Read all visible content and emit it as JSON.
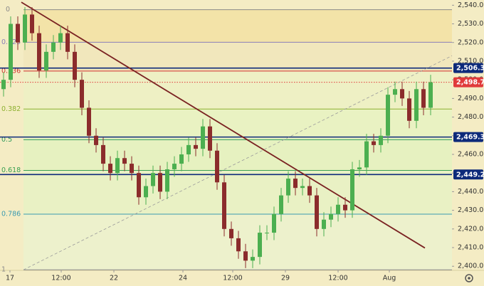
{
  "chart_data": {
    "type": "candlestick",
    "open": [
      2495,
      2500,
      2530,
      2520,
      2535,
      2525,
      2505,
      2515,
      2520,
      2525,
      2515,
      2500,
      2485,
      2470,
      2465,
      2455,
      2450,
      2458,
      2455,
      2450,
      2437,
      2443,
      2450,
      2440,
      2452,
      2455,
      2460,
      2465,
      2463,
      2475,
      2462,
      2445,
      2420,
      2415,
      2408,
      2403,
      2405,
      2418,
      2418,
      2428,
      2438,
      2447,
      2442,
      2443,
      2438,
      2420,
      2425,
      2428,
      2433,
      2430,
      2452,
      2453,
      2467,
      2465,
      2470,
      2492,
      2495,
      2490,
      2478,
      2495,
      2485
    ],
    "high": [
      2504,
      2534,
      2534,
      2539,
      2539,
      2529,
      2519,
      2524,
      2529,
      2529,
      2519,
      2504,
      2489,
      2474,
      2469,
      2459,
      2462,
      2462,
      2459,
      2454,
      2447,
      2454,
      2454,
      2456,
      2459,
      2464,
      2469,
      2469,
      2479,
      2479,
      2466,
      2449,
      2424,
      2419,
      2412,
      2409,
      2422,
      2422,
      2432,
      2442,
      2451,
      2451,
      2447,
      2447,
      2442,
      2429,
      2432,
      2437,
      2437,
      2456,
      2457,
      2471,
      2471,
      2474,
      2496,
      2499,
      2499,
      2494,
      2499,
      2499,
      2502.7
    ],
    "low": [
      2491,
      2496,
      2516,
      2516,
      2521,
      2501,
      2501,
      2511,
      2516,
      2511,
      2496,
      2481,
      2466,
      2461,
      2451,
      2446,
      2446,
      2451,
      2446,
      2433,
      2433,
      2439,
      2436,
      2436,
      2448,
      2451,
      2456,
      2459,
      2459,
      2458,
      2441,
      2416,
      2411,
      2404,
      2399,
      2399,
      2401,
      2414,
      2414,
      2424,
      2434,
      2438,
      2438,
      2434,
      2416,
      2416,
      2421,
      2424,
      2426,
      2426,
      2448,
      2449,
      2461,
      2461,
      2466,
      2488,
      2486,
      2474,
      2474,
      2481,
      2481
    ],
    "close": [
      2500,
      2530,
      2520,
      2535,
      2525,
      2505,
      2515,
      2520,
      2525,
      2515,
      2500,
      2485,
      2470,
      2465,
      2455,
      2450,
      2458,
      2455,
      2450,
      2437,
      2443,
      2450,
      2440,
      2452,
      2455,
      2460,
      2465,
      2463,
      2475,
      2462,
      2445,
      2420,
      2415,
      2408,
      2403,
      2405,
      2418,
      2418,
      2428,
      2438,
      2447,
      2442,
      2443,
      2438,
      2420,
      2425,
      2428,
      2433,
      2430,
      2452,
      2453,
      2467,
      2465,
      2470,
      2492,
      2495,
      2490,
      2478,
      2495,
      2485,
      2498.7
    ],
    "up_color": "#4caf50",
    "down_color": "#8b2c2c",
    "xlim": [
      -0.5,
      63
    ],
    "xticks": [
      {
        "value": 0.9,
        "label": "17"
      },
      {
        "value": 8.1,
        "label": "12:00"
      },
      {
        "value": 15.5,
        "label": "22"
      },
      {
        "value": 25.2,
        "label": "24"
      },
      {
        "value": 32.2,
        "label": "12:00"
      },
      {
        "value": 39.6,
        "label": "29"
      },
      {
        "value": 47,
        "label": "12:00"
      },
      {
        "value": 54.2,
        "label": "Aug"
      }
    ],
    "ylim": [
      2397.8,
      2542.8
    ],
    "yticks": [
      {
        "value": 2400,
        "label": "2,400.0"
      },
      {
        "value": 2410,
        "label": "2,410.0"
      },
      {
        "value": 2420,
        "label": "2,420.0"
      },
      {
        "value": 2430,
        "label": "2,430.0"
      },
      {
        "value": 2440,
        "label": "2,440.0"
      },
      {
        "value": 2450,
        "label": "2,450.0"
      },
      {
        "value": 2460,
        "label": "2,460.0"
      },
      {
        "value": 2470,
        "label": "2,470.0"
      },
      {
        "value": 2480,
        "label": "2,480.0"
      },
      {
        "value": 2490,
        "label": "2,490.0"
      },
      {
        "value": 2500,
        "label": "2,500.0"
      },
      {
        "value": 2510,
        "label": "2,510.0"
      },
      {
        "value": 2520,
        "label": "2,520.0"
      },
      {
        "value": 2530,
        "label": "2,530.0"
      },
      {
        "value": 2540,
        "label": "2,540.0"
      }
    ],
    "fib": {
      "start": 2537.6,
      "end": 2398.1,
      "levels": [
        0,
        0.125,
        0.236,
        0.382,
        0.5,
        0.618,
        0.786,
        1
      ],
      "colors": [
        "#8a8a8a",
        "#8a7fb8",
        "#d03030",
        "#8db030",
        "#2e9a5a",
        "#3aa050",
        "#3a9ab0",
        "#8a8a8a"
      ],
      "zone_colors": [
        "#f3e3a8",
        "#f1e7bc",
        "#eef0c4",
        "#e9f2c2",
        "#e6f1c0",
        "#e9f1c4",
        "#edf1cc"
      ]
    },
    "price_lines": [
      {
        "value": 2506.3,
        "value_label": "2,506.3",
        "color": "#0d2a7a"
      },
      {
        "value": 2498.7,
        "value_label": "2,498.7",
        "color": "#e03a3a",
        "dotted": true
      },
      {
        "value": 2469.3,
        "value_label": "2,469.3",
        "color": "#0d2a7a"
      },
      {
        "value": 2449.2,
        "value_label": "2,449.2",
        "color": "#0d2a7a"
      }
    ],
    "trendlines": [
      {
        "x": [
          2.5,
          59.2
        ],
        "y": [
          2541.6,
          2409.8
        ],
        "color": "#7a2222"
      },
      {
        "x": [
          2.8,
          63
        ],
        "y": [
          2398.1,
          2512.9
        ],
        "color": "#9a9a9a",
        "dashed": true
      }
    ]
  }
}
